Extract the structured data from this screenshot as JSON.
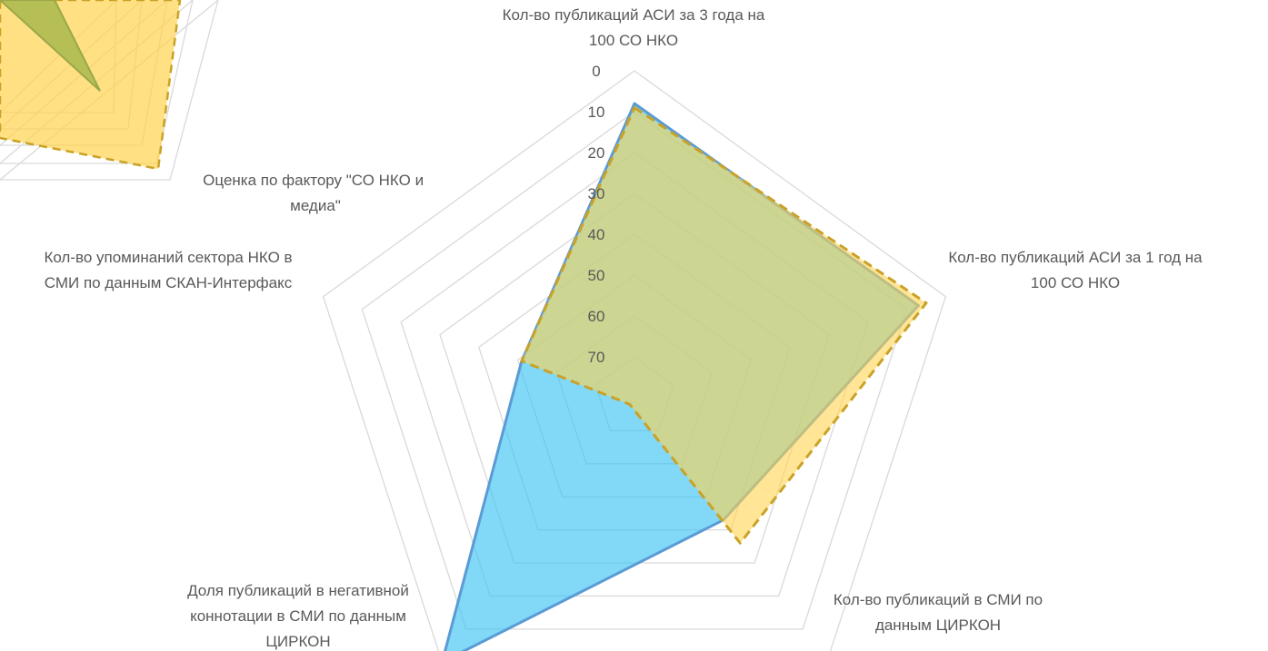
{
  "colors": {
    "series_blue_fill": "#3ec3f2",
    "series_blue_line": "#5b9bd5",
    "series_yellow_fill": "#ffd34f",
    "series_yellow_line": "#c9a227",
    "series_overlap": "#a9b94f",
    "grid": "#d9d9d9",
    "text": "#595959"
  },
  "chart_data": [
    {
      "type": "radar",
      "title": "",
      "axis_reversed": true,
      "r_range": [
        0,
        80
      ],
      "ticks": [
        "0",
        "10",
        "20",
        "30",
        "40",
        "50",
        "60",
        "70"
      ],
      "categories": [
        "Кол-во публикаций АСИ за 3 года на 100 СО НКО",
        "Кол-во публикаций АСИ за 1 год на 100 СО НКО",
        "Кол-во публикаций в СМИ по данным ЦИРКОН",
        "Доля публикаций в негативной коннотации в СМИ по данным ЦИРКОН",
        "Кол-во упоминаний сектора НКО в СМИ по данным СКАН-Интерфакс"
      ],
      "category_lines": [
        [
          "Кол-во публикаций АСИ за 3 года на",
          "100 СО НКО"
        ],
        [
          "Кол-во публикаций АСИ за 1 год на",
          "100 СО НКО"
        ],
        [
          "Кол-во публикаций в СМИ по",
          "данным ЦИРКОН"
        ],
        [
          "Доля публикаций в негативной",
          "коннотации в СМИ по данным",
          "ЦИРКОН"
        ],
        [
          "Кол-во упоминаний сектора НКО в",
          "СМИ по данным СКАН-Интерфакс"
        ]
      ],
      "series": [
        {
          "values": [
            8,
            7,
            43,
            0,
            51
          ],
          "color": "blue"
        },
        {
          "values": [
            9,
            5,
            36,
            78,
            51
          ],
          "color": "yellow"
        }
      ]
    },
    {
      "type": "radar",
      "partial": true,
      "visible_labels": [
        "Оценка по фактору \"СО НКО и медиа\""
      ]
    }
  ],
  "side_label_lines": [
    "Оценка по фактору \"СО НКО и",
    "медиа\""
  ]
}
